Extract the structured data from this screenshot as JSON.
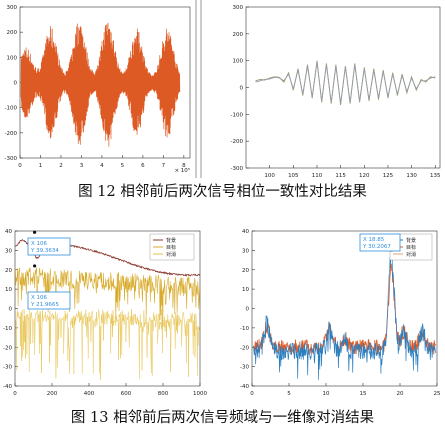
{
  "figures": [
    {
      "caption": "图 12 相邻前后两次信号相位一致性对比结果",
      "chart_data": [
        {
          "type": "line",
          "y_ticks": [
            "300",
            "200",
            "100",
            "0",
            "-100",
            "-200",
            "-300"
          ],
          "x_ticks": [
            "0",
            "1",
            "2",
            "3",
            "4",
            "5",
            "6",
            "7",
            "8"
          ],
          "x_exponent": "× 10⁵",
          "xlim": [
            0,
            8.3
          ],
          "ylim": [
            -300,
            300
          ],
          "burst_centers": [
            0.3,
            1.5,
            2.9,
            4.3,
            5.7,
            7.2
          ],
          "burst_peaks": [
            130,
            210,
            240,
            250,
            200,
            210
          ],
          "color": "#dd5a25"
        },
        {
          "type": "line",
          "y_ticks": [
            "300",
            "200",
            "100",
            "0",
            "-100",
            "-200",
            "-300"
          ],
          "x_ticks": [
            "100",
            "105",
            "110",
            "115",
            "120",
            "125",
            "130",
            "135"
          ],
          "xlim": [
            95,
            136
          ],
          "ylim": [
            -300,
            300
          ],
          "series": [
            {
              "x": [
                97,
                98,
                99,
                100,
                101,
                102,
                103,
                104,
                105,
                106,
                107,
                108,
                109,
                110,
                111,
                112,
                113,
                114,
                115,
                116,
                117,
                118,
                119,
                120,
                121,
                122,
                123,
                124,
                125,
                126,
                127,
                128,
                129,
                130,
                131,
                132,
                133,
                134,
                135
              ],
              "values": [
                25,
                30,
                28,
                35,
                40,
                38,
                20,
                55,
                -10,
                70,
                -30,
                85,
                -40,
                100,
                -55,
                90,
                -60,
                85,
                -65,
                80,
                -60,
                90,
                -55,
                75,
                -50,
                70,
                -45,
                65,
                -40,
                55,
                -30,
                50,
                -20,
                40,
                -10,
                30,
                20,
                40,
                35
              ],
              "color": "#8aa060"
            },
            {
              "x": [
                97,
                98,
                99,
                100,
                101,
                102,
                103,
                104,
                105,
                106,
                107,
                108,
                109,
                110,
                111,
                112,
                113,
                114,
                115,
                116,
                117,
                118,
                119,
                120,
                121,
                122,
                123,
                124,
                125,
                126,
                127,
                128,
                129,
                130,
                131,
                132,
                133,
                134,
                135
              ],
              "values": [
                20,
                25,
                30,
                32,
                38,
                36,
                25,
                50,
                -5,
                65,
                -25,
                80,
                -35,
                95,
                -50,
                85,
                -55,
                80,
                -60,
                78,
                -55,
                85,
                -50,
                70,
                -45,
                65,
                -40,
                60,
                -35,
                50,
                -25,
                45,
                -15,
                35,
                -5,
                25,
                25,
                35,
                40
              ],
              "color": "#9a9aa8"
            }
          ]
        }
      ]
    },
    {
      "caption": "图 13 相邻前后两次信号频域与一维像对消结果",
      "chart_data": [
        {
          "type": "line",
          "y_ticks": [
            "40",
            "30",
            "20",
            "10",
            "0",
            "-10",
            "-20",
            "-30",
            "-40"
          ],
          "x_ticks": [
            "0",
            "200",
            "400",
            "600",
            "800",
            "1000"
          ],
          "xlim": [
            0,
            1000
          ],
          "ylim": [
            -40,
            40
          ],
          "legend": [
            "背景",
            "目标",
            "对消"
          ],
          "datatips": [
            {
              "x": "X 106",
              "y": "Y 39.3634"
            },
            {
              "x": "X 106",
              "y": "Y 21.9665"
            }
          ],
          "series": [
            {
              "name": "背景",
              "color": "#8b3a2e"
            },
            {
              "name": "目标",
              "color": "#d8aa2a"
            },
            {
              "name": "对消",
              "color": "#e7c24a"
            }
          ]
        },
        {
          "type": "line",
          "y_ticks": [
            "40",
            "30",
            "20",
            "10",
            "0",
            "-10",
            "-20",
            "-30",
            "-40"
          ],
          "x_ticks": [
            "0",
            "5",
            "10",
            "15",
            "20",
            "25"
          ],
          "xlim": [
            0,
            25
          ],
          "ylim": [
            -40,
            40
          ],
          "legend": [
            "背景",
            "目标",
            "对消"
          ],
          "datatips": [
            {
              "x": "X 18.85",
              "y": "Y 30.2067"
            }
          ],
          "series": [
            {
              "name": "背景",
              "color": "#2a7fc0"
            },
            {
              "name": "目标",
              "color": "#e05a25"
            },
            {
              "name": "对消",
              "color": "#e9a06a"
            }
          ]
        }
      ]
    }
  ]
}
